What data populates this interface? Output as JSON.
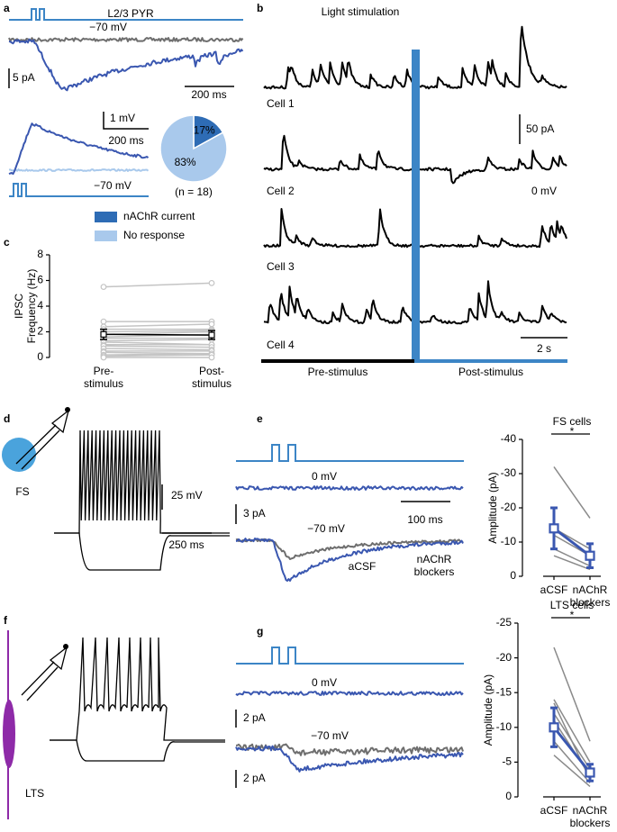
{
  "panel_labels": [
    "a",
    "b",
    "c",
    "d",
    "e",
    "f",
    "g"
  ],
  "panel_a": {
    "cell": "L2/3 PYR",
    "holding_top": "−70 mV",
    "scale_current": "5 pA",
    "scale_time_top": "200 ms",
    "scale_voltage": "1 mV",
    "scale_time_bottom": "200 ms",
    "holding_bottom": "−70 mV",
    "n_note": "(n = 18)"
  },
  "panel_b": {
    "title": "Light stimulation",
    "cells": [
      "Cell 1",
      "Cell 2",
      "Cell 3",
      "Cell 4"
    ],
    "scale_current": "50 pA",
    "holding": "0 mV",
    "scale_time": "2 s",
    "periods": [
      "Pre-stimulus",
      "Post-stimulus"
    ]
  },
  "panel_d": {
    "scale_voltage": "25 mV",
    "scale_time": "250 ms",
    "cell": "FS"
  },
  "panel_e": {
    "holding_top": "0 mV",
    "scale_current": "3 pA",
    "scale_time": "100 ms",
    "holding_bottom": "−70 mV",
    "conditions": [
      "aCSF",
      "nAChR\nblockers"
    ]
  },
  "panel_f": {
    "cell": "LTS"
  },
  "panel_g": {
    "holding_top": "0 mV",
    "scale_current_top": "2 pA",
    "holding_bottom": "−70 mV",
    "scale_current_bottom": "2 pA"
  },
  "chart_data": [
    {
      "type": "pie",
      "categories": [
        "nAChR current",
        "No response"
      ],
      "values": [
        17,
        83
      ],
      "value_labels": [
        "17%",
        "83%"
      ],
      "colors": [
        "#2e6cb5",
        "#a9c9ec"
      ]
    },
    {
      "type": "line",
      "ylabel": "IPSC\nFrequency (Hz)",
      "categories": [
        "Pre-\nstimulus",
        "Post-\nstimulus"
      ],
      "category_colors": [
        "#000000",
        "#3b86c8"
      ],
      "ylim": [
        0,
        8
      ],
      "yticks": [
        0,
        2,
        4,
        6,
        8
      ],
      "pair_color": "#c4c4c4",
      "markers": true,
      "x_axis_line": false,
      "series": [
        {
          "values": [
            5.5,
            5.8
          ]
        },
        {
          "values": [
            2.8,
            2.8
          ]
        },
        {
          "values": [
            2.4,
            2.6
          ]
        },
        {
          "values": [
            2.2,
            2.2
          ]
        },
        {
          "values": [
            2.0,
            2.1
          ]
        },
        {
          "values": [
            1.8,
            2.0
          ]
        },
        {
          "values": [
            1.6,
            1.8
          ]
        },
        {
          "values": [
            1.5,
            1.5
          ]
        },
        {
          "values": [
            1.3,
            1.4
          ]
        },
        {
          "values": [
            1.2,
            1.0
          ]
        },
        {
          "values": [
            1.0,
            1.0
          ]
        },
        {
          "values": [
            0.9,
            0.8
          ]
        },
        {
          "values": [
            0.7,
            0.6
          ]
        },
        {
          "values": [
            0.5,
            0.5
          ]
        },
        {
          "values": [
            0.4,
            0.3
          ]
        },
        {
          "values": [
            0.2,
            0.3
          ]
        },
        {
          "values": [
            0.1,
            0.2
          ]
        },
        {
          "values": [
            0.0,
            0.0
          ]
        }
      ],
      "mean": {
        "values": [
          1.8,
          1.75
        ],
        "errors": [
          0.4,
          0.35
        ],
        "color": "#000000"
      }
    },
    {
      "type": "line",
      "title": "FS cells",
      "title_color": "#3b86c8",
      "annotation": "*",
      "ylabel": "Amplitude (pA)",
      "categories": [
        "aCSF",
        "nAChR\nblockers"
      ],
      "category_colors": [
        "#3a57b0",
        "#808080"
      ],
      "ylim": [
        0,
        -40
      ],
      "yticks": [
        0,
        -10,
        -20,
        -30,
        -40
      ],
      "pair_color": "#8a8a8a",
      "markers": false,
      "x_axis_line": true,
      "series": [
        {
          "values": [
            -32,
            -17
          ]
        },
        {
          "values": [
            -14,
            -8
          ]
        },
        {
          "values": [
            -12,
            -6
          ]
        },
        {
          "values": [
            -8,
            -3
          ]
        },
        {
          "values": [
            -6,
            -2
          ]
        }
      ],
      "mean": {
        "values": [
          -14,
          -6
        ],
        "errors": [
          6,
          3.5
        ],
        "color": "#3a57b0"
      }
    },
    {
      "type": "line",
      "title": "LTS cells",
      "title_color": "#8e2aa8",
      "annotation": "*",
      "ylabel": "Amplitude (pA)",
      "categories": [
        "aCSF",
        "nAChR\nblockers"
      ],
      "category_colors": [
        "#3a57b0",
        "#808080"
      ],
      "ylim": [
        0,
        -25
      ],
      "yticks": [
        0,
        -5,
        -10,
        -15,
        -20,
        -25
      ],
      "pair_color": "#8a8a8a",
      "markers": false,
      "x_axis_line": true,
      "series": [
        {
          "values": [
            -21.5,
            -8
          ]
        },
        {
          "values": [
            -14,
            -5
          ]
        },
        {
          "values": [
            -13.5,
            -2.5
          ]
        },
        {
          "values": [
            -12,
            -4
          ]
        },
        {
          "values": [
            -11,
            -3
          ]
        },
        {
          "values": [
            -8,
            -2
          ]
        },
        {
          "values": [
            -6,
            -1.5
          ]
        }
      ],
      "mean": {
        "values": [
          -10,
          -3.5
        ],
        "errors": [
          2.8,
          1.2
        ],
        "color": "#3a57b0"
      }
    }
  ]
}
